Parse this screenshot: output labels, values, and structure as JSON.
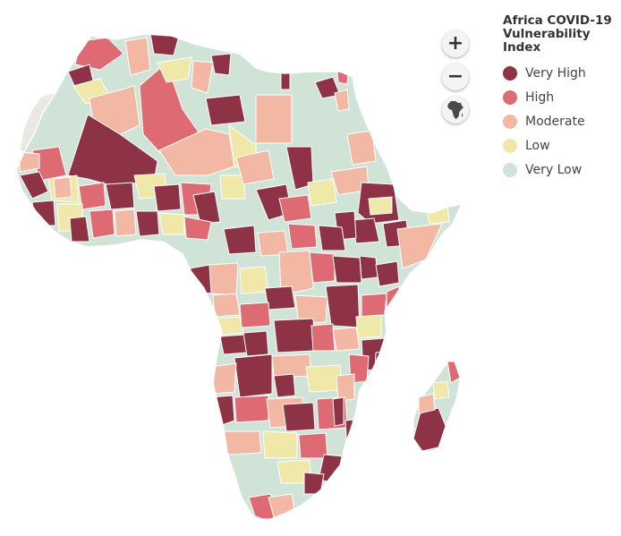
{
  "legend": {
    "title_lines": [
      "Africa COVID-19",
      "Vulnerability",
      "Index"
    ],
    "items": [
      {
        "label": "Very High",
        "color": "#8e3246"
      },
      {
        "label": "High",
        "color": "#de6a73"
      },
      {
        "label": "Moderate",
        "color": "#f3b8a4"
      },
      {
        "label": "Low",
        "color": "#efe8a8"
      },
      {
        "label": "Very Low",
        "color": "#cfe4d6"
      }
    ]
  },
  "controls": {
    "zoom_in_label": "+",
    "zoom_out_label": "−",
    "reset_icon": "africa-continent-icon"
  },
  "map": {
    "no_data_color": "#eae7e4",
    "border_color": "#ffffff"
  }
}
